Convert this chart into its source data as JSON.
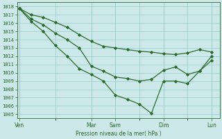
{
  "title": "",
  "xlabel": "Pression niveau de la mer( hPa )",
  "ylabel": "",
  "ylim": [
    1004.5,
    1018.5
  ],
  "yticks": [
    1005,
    1006,
    1007,
    1008,
    1009,
    1010,
    1011,
    1012,
    1013,
    1014,
    1015,
    1016,
    1017,
    1018
  ],
  "bg_color": "#cce8e8",
  "grid_color": "#99cccc",
  "line_color": "#2d6a2d",
  "marker_color": "#2d6a2d",
  "xtick_labels": [
    "Ven",
    "",
    "Mar",
    "Sam",
    "",
    "Dim",
    "",
    "Lun"
  ],
  "xtick_positions": [
    0,
    18,
    36,
    48,
    60,
    72,
    84,
    96
  ],
  "xlim": [
    -1,
    100
  ],
  "line1": [
    [
      0,
      1017.8
    ],
    [
      6,
      1017.0
    ],
    [
      12,
      1016.7
    ],
    [
      18,
      1016.1
    ],
    [
      24,
      1015.5
    ],
    [
      30,
      1014.6
    ],
    [
      36,
      1013.8
    ],
    [
      42,
      1013.2
    ],
    [
      48,
      1013.0
    ],
    [
      54,
      1012.8
    ],
    [
      60,
      1012.6
    ],
    [
      66,
      1012.5
    ],
    [
      72,
      1012.3
    ],
    [
      78,
      1012.2
    ],
    [
      84,
      1012.4
    ],
    [
      90,
      1012.8
    ],
    [
      96,
      1012.5
    ]
  ],
  "line2": [
    [
      0,
      1017.8
    ],
    [
      6,
      1016.5
    ],
    [
      12,
      1015.8
    ],
    [
      18,
      1014.8
    ],
    [
      24,
      1014.0
    ],
    [
      30,
      1013.0
    ],
    [
      36,
      1010.8
    ],
    [
      42,
      1010.2
    ],
    [
      48,
      1009.5
    ],
    [
      54,
      1009.3
    ],
    [
      60,
      1009.0
    ],
    [
      66,
      1009.2
    ],
    [
      72,
      1010.3
    ],
    [
      78,
      1010.7
    ],
    [
      84,
      1009.8
    ],
    [
      90,
      1010.2
    ],
    [
      96,
      1012.0
    ]
  ],
  "line3": [
    [
      0,
      1017.8
    ],
    [
      6,
      1016.2
    ],
    [
      12,
      1015.0
    ],
    [
      18,
      1013.3
    ],
    [
      24,
      1012.0
    ],
    [
      30,
      1010.5
    ],
    [
      36,
      1009.8
    ],
    [
      42,
      1009.0
    ],
    [
      48,
      1007.3
    ],
    [
      54,
      1006.8
    ],
    [
      60,
      1006.2
    ],
    [
      66,
      1005.1
    ],
    [
      72,
      1009.0
    ],
    [
      78,
      1009.0
    ],
    [
      84,
      1008.7
    ],
    [
      90,
      1010.2
    ],
    [
      96,
      1011.5
    ]
  ]
}
